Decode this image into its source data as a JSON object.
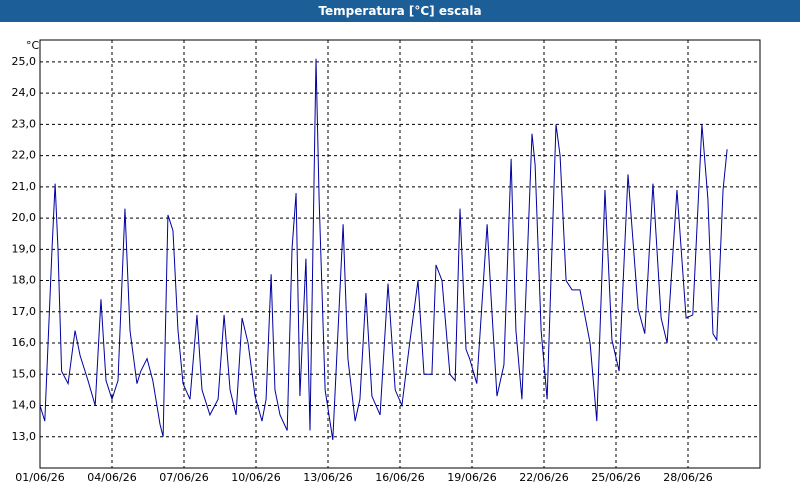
{
  "chart_data": {
    "type": "line",
    "title": "Temperatura [°C] escala",
    "y_label": "°C",
    "x": [
      0,
      0.2,
      0.5,
      0.63,
      0.75,
      0.9,
      1.17,
      1.46,
      1.67,
      2,
      2.3,
      2.54,
      2.75,
      3,
      3.25,
      3.54,
      3.75,
      4.04,
      4.2,
      4.46,
      4.7,
      5,
      5.13,
      5.33,
      5.54,
      5.75,
      5.96,
      6.25,
      6.54,
      6.75,
      7.08,
      7.42,
      7.67,
      7.92,
      8.17,
      8.42,
      8.67,
      8.96,
      9.25,
      9.42,
      9.63,
      9.79,
      10,
      10.3,
      10.5,
      10.67,
      10.83,
      11.08,
      11.25,
      11.5,
      11.63,
      11.88,
      12.2,
      12.63,
      12.83,
      13.13,
      13.33,
      13.58,
      13.83,
      14.17,
      14.5,
      14.8,
      15.08,
      15.42,
      15.75,
      16,
      16.33,
      16.5,
      16.75,
      17.08,
      17.3,
      17.5,
      17.75,
      17.9,
      18.2,
      18.63,
      18.8,
      19.04,
      19.33,
      19.63,
      19.83,
      20.08,
      20.5,
      20.63,
      20.88,
      21.13,
      21.5,
      21.67,
      21.92,
      22.17,
      22.5,
      22.92,
      23.2,
      23.54,
      23.83,
      24.13,
      24.5,
      24.92,
      25.2,
      25.54,
      25.88,
      26.13,
      26.54,
      26.92,
      27.2,
      27.58,
      27.83,
      28.04,
      28.2,
      28.46,
      28.63
    ],
    "series": [
      {
        "name": "Temperatura",
        "color": "#0000a0",
        "values": [
          14.0,
          13.5,
          19.0,
          21.1,
          19.0,
          15.1,
          14.7,
          16.4,
          15.6,
          14.8,
          14.0,
          17.4,
          14.8,
          14.2,
          14.8,
          20.3,
          16.4,
          14.7,
          15.1,
          15.5,
          14.8,
          13.4,
          13.0,
          20.1,
          19.6,
          16.4,
          14.7,
          14.2,
          16.9,
          14.5,
          13.7,
          14.2,
          16.9,
          14.5,
          13.7,
          16.8,
          16.0,
          14.3,
          13.5,
          14.2,
          18.2,
          14.5,
          13.7,
          13.2,
          19.0,
          20.8,
          14.3,
          18.7,
          13.2,
          25.1,
          20.6,
          14.5,
          12.9,
          19.8,
          15.5,
          13.5,
          14.2,
          17.6,
          14.3,
          13.7,
          17.9,
          14.5,
          14.0,
          16.1,
          18.0,
          15.0,
          15.0,
          18.5,
          18.0,
          15.0,
          14.8,
          20.3,
          15.8,
          15.5,
          14.7,
          19.8,
          17.4,
          14.3,
          15.3,
          21.9,
          16.4,
          14.2,
          22.7,
          21.7,
          16.4,
          14.2,
          23.0,
          22.0,
          18.0,
          17.7,
          17.7,
          16.0,
          13.5,
          20.9,
          16.1,
          15.1,
          21.4,
          17.1,
          16.3,
          21.1,
          16.8,
          16.0,
          20.9,
          16.8,
          16.9,
          23.0,
          20.6,
          16.3,
          16.1,
          20.9,
          22.2
        ]
      }
    ],
    "xlim": [
      0,
      30
    ],
    "xticks": [
      {
        "value": 0,
        "label": "01/06/26"
      },
      {
        "value": 3,
        "label": "04/06/26"
      },
      {
        "value": 6,
        "label": "07/06/26"
      },
      {
        "value": 9,
        "label": "10/06/26"
      },
      {
        "value": 12,
        "label": "13/06/26"
      },
      {
        "value": 15,
        "label": "16/06/26"
      },
      {
        "value": 18,
        "label": "19/06/26"
      },
      {
        "value": 21,
        "label": "22/06/26"
      },
      {
        "value": 24,
        "label": "25/06/26"
      },
      {
        "value": 27,
        "label": "28/06/26"
      }
    ],
    "ylim": [
      12,
      25.7
    ],
    "yticks": [
      {
        "value": 13,
        "label": "13,0"
      },
      {
        "value": 14,
        "label": "14,0"
      },
      {
        "value": 15,
        "label": "15,0"
      },
      {
        "value": 16,
        "label": "16,0"
      },
      {
        "value": 17,
        "label": "17,0"
      },
      {
        "value": 18,
        "label": "18,0"
      },
      {
        "value": 19,
        "label": "19,0"
      },
      {
        "value": 20,
        "label": "20,0"
      },
      {
        "value": 21,
        "label": "21,0"
      },
      {
        "value": 22,
        "label": "22,0"
      },
      {
        "value": 23,
        "label": "23,0"
      },
      {
        "value": 24,
        "label": "24,0"
      },
      {
        "value": 25,
        "label": "25,0"
      }
    ],
    "grid": true
  }
}
